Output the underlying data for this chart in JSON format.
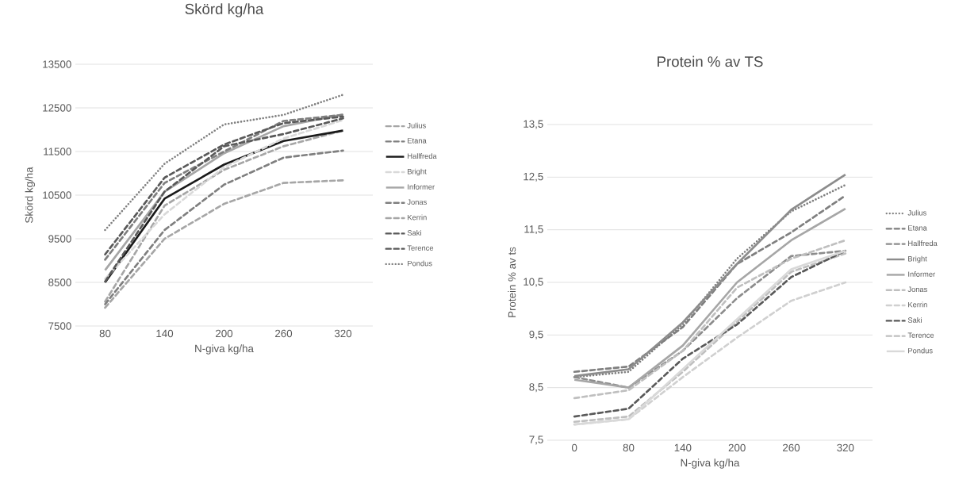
{
  "chart_data": [
    {
      "type": "line",
      "title": "Skörd kg/ha",
      "xlabel": "N-giva kg/ha",
      "ylabel": "Skörd kg/ha",
      "categories": [
        "80",
        "140",
        "200",
        "260",
        "320"
      ],
      "ylim": [
        7500,
        13500
      ],
      "yticks": [
        7500,
        8500,
        9500,
        10500,
        11500,
        12500,
        13500
      ],
      "grid": "y",
      "legend": "right",
      "series": [
        {
          "name": "Julius",
          "color": "#a6a6a6",
          "line_style": "dashed",
          "values": [
            8060,
            10260,
            11080,
            11620,
            11980
          ]
        },
        {
          "name": "Etana",
          "color": "#7f7f7f",
          "line_style": "dashed",
          "values": [
            8000,
            9700,
            10740,
            11360,
            11520
          ]
        },
        {
          "name": "Hallfreda",
          "color": "#1a1a1a",
          "line_style": "solid",
          "values": [
            8500,
            10420,
            11200,
            11740,
            11980
          ]
        },
        {
          "name": "Bright",
          "color": "#d9d9d9",
          "line_style": "dashed",
          "values": [
            8580,
            10060,
            11140,
            11800,
            12220
          ]
        },
        {
          "name": "Informer",
          "color": "#a6a6a6",
          "line_style": "solid",
          "values": [
            8780,
            10580,
            11460,
            12080,
            12350
          ]
        },
        {
          "name": "Jonas",
          "color": "#7f7f7f",
          "line_style": "dashed",
          "values": [
            9020,
            10780,
            11500,
            12200,
            12340
          ]
        },
        {
          "name": "Kerrin",
          "color": "#a6a6a6",
          "line_style": "dashed",
          "values": [
            7920,
            9500,
            10300,
            10780,
            10840
          ]
        },
        {
          "name": "Saki",
          "color": "#595959",
          "line_style": "dashed",
          "values": [
            9140,
            10900,
            11660,
            12150,
            12300
          ]
        },
        {
          "name": "Terence",
          "color": "#595959",
          "line_style": "dashed",
          "values": [
            8520,
            10580,
            11620,
            11900,
            12260
          ]
        },
        {
          "name": "Pondus",
          "color": "#7f7f7f",
          "line_style": "dotted",
          "values": [
            9700,
            11220,
            12120,
            12340,
            12800
          ]
        }
      ]
    },
    {
      "type": "line",
      "title": "Protein % av TS",
      "xlabel": "N-giva kg/ha",
      "ylabel": "Protein % av ts",
      "categories": [
        "0",
        "80",
        "140",
        "200",
        "260",
        "320"
      ],
      "ylim": [
        7.5,
        13.5
      ],
      "yticks": [
        {
          "value": 7.5,
          "label": "7,5"
        },
        {
          "value": 8.5,
          "label": "8,5"
        },
        {
          "value": 9.5,
          "label": "9,5"
        },
        {
          "value": 10.5,
          "label": "10,5"
        },
        {
          "value": 11.5,
          "label": "11,5"
        },
        {
          "value": 12.5,
          "label": "12,5"
        },
        {
          "value": 13.5,
          "label": "13,5"
        }
      ],
      "grid": "y",
      "legend": "right",
      "series": [
        {
          "name": "Julius",
          "color": "#7f7f7f",
          "line_style": "dotted",
          "values": [
            8.7,
            8.8,
            9.7,
            10.95,
            11.85,
            12.35
          ]
        },
        {
          "name": "Etana",
          "color": "#7f7f7f",
          "line_style": "dashed",
          "values": [
            8.8,
            8.9,
            9.65,
            10.85,
            11.45,
            12.15
          ]
        },
        {
          "name": "Hallfreda",
          "color": "#8c8c8c",
          "line_style": "dashed",
          "values": [
            8.7,
            8.5,
            9.2,
            10.2,
            11.0,
            11.1
          ]
        },
        {
          "name": "Bright",
          "color": "#8c8c8c",
          "line_style": "solid",
          "values": [
            8.72,
            8.85,
            9.74,
            10.85,
            11.88,
            12.55
          ]
        },
        {
          "name": "Informer",
          "color": "#a6a6a6",
          "line_style": "solid",
          "values": [
            8.65,
            8.5,
            9.3,
            10.5,
            11.3,
            11.9
          ]
        },
        {
          "name": "Jonas",
          "color": "#bfbfbf",
          "line_style": "dashed",
          "values": [
            7.85,
            7.95,
            8.8,
            9.75,
            10.7,
            11.05
          ]
        },
        {
          "name": "Kerrin",
          "color": "#d0d0d0",
          "line_style": "dashed",
          "values": [
            7.8,
            7.9,
            8.7,
            9.45,
            10.15,
            10.5
          ]
        },
        {
          "name": "Saki",
          "color": "#595959",
          "line_style": "dashed",
          "values": [
            7.95,
            8.1,
            9.05,
            9.7,
            10.6,
            11.1
          ]
        },
        {
          "name": "Terence",
          "color": "#bfbfbf",
          "line_style": "dashed",
          "values": [
            8.3,
            8.45,
            9.2,
            10.4,
            10.95,
            11.3
          ]
        },
        {
          "name": "Pondus",
          "color": "#d9d9d9",
          "line_style": "solid",
          "values": [
            7.8,
            7.9,
            8.85,
            9.8,
            10.75,
            11.1
          ]
        }
      ]
    }
  ]
}
